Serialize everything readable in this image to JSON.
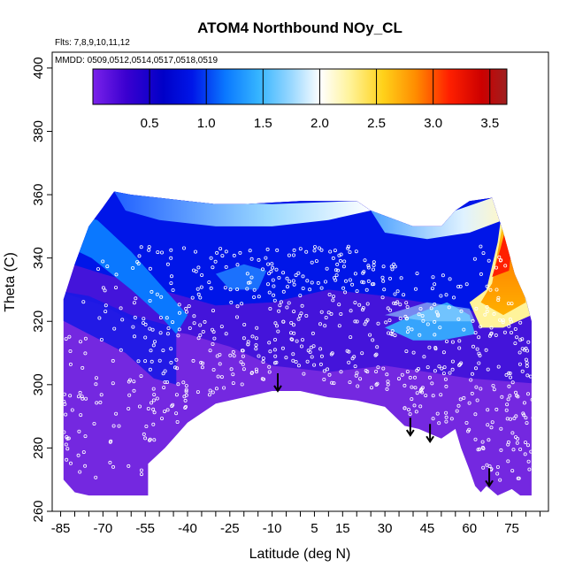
{
  "chart_data": {
    "type": "heatmap",
    "title": "ATOM4 Northbound NOy_CL",
    "subtitle": "Flts: 7,8,9,10,11,12",
    "annotation": "MMDD: 0509,0512,0514,0517,0518,0519",
    "xlabel": "Latitude (deg N)",
    "ylabel": "Theta (C)",
    "xlim": [
      -88,
      88
    ],
    "ylim": [
      260,
      405
    ],
    "x_ticks": [
      -85,
      -70,
      -55,
      -40,
      -25,
      -10,
      5,
      15,
      30,
      45,
      60,
      75
    ],
    "y_ticks": [
      260,
      280,
      300,
      320,
      340,
      360,
      380,
      400
    ],
    "colorbar": {
      "range": [
        0,
        3.65
      ],
      "ticks": [
        0.5,
        1.0,
        1.5,
        2.0,
        2.5,
        3.0,
        3.5
      ],
      "tick_labels": [
        "0.5",
        "1.0",
        "1.5",
        "2.0",
        "2.5",
        "3.0",
        "3.5"
      ],
      "colors": [
        "#7a22ea",
        "#3b00d0",
        "#0000c8",
        "#0016e8",
        "#0a78ff",
        "#35b4ff",
        "#9ad8ff",
        "#ffffff",
        "#fff39a",
        "#ffd21a",
        "#ff8c00",
        "#ff2000",
        "#cc0000",
        "#9e2020"
      ]
    },
    "arrows": [
      {
        "lat": -8,
        "theta": 298
      },
      {
        "lat": 39,
        "theta": 284
      },
      {
        "lat": 46,
        "theta": 282
      },
      {
        "lat": 67,
        "theta": 268
      }
    ],
    "upper_envelope": [
      [
        -84,
        327
      ],
      [
        -80,
        338
      ],
      [
        -75,
        350
      ],
      [
        -70,
        356
      ],
      [
        -66,
        361
      ],
      [
        -60,
        360
      ],
      [
        -50,
        359
      ],
      [
        -40,
        358
      ],
      [
        -30,
        357
      ],
      [
        -20,
        357
      ],
      [
        0,
        358
      ],
      [
        20,
        358
      ],
      [
        25,
        355
      ],
      [
        40,
        350
      ],
      [
        50,
        350
      ],
      [
        55,
        355
      ],
      [
        60,
        358
      ],
      [
        68,
        359
      ],
      [
        72,
        348
      ],
      [
        76,
        335
      ],
      [
        80,
        327
      ],
      [
        82,
        320
      ],
      [
        82,
        300
      ]
    ],
    "lower_envelope": [
      [
        -84,
        270
      ],
      [
        -80,
        266
      ],
      [
        -75,
        265
      ],
      [
        -70,
        265
      ],
      [
        -60,
        265
      ],
      [
        -54,
        265
      ],
      [
        -54,
        275
      ],
      [
        -48,
        280
      ],
      [
        -40,
        288
      ],
      [
        -30,
        294
      ],
      [
        -20,
        296
      ],
      [
        -10,
        298
      ],
      [
        0,
        298
      ],
      [
        10,
        296
      ],
      [
        20,
        295
      ],
      [
        30,
        293
      ],
      [
        37,
        287
      ],
      [
        42,
        286
      ],
      [
        50,
        283
      ],
      [
        55,
        286
      ],
      [
        57,
        280
      ],
      [
        60,
        273
      ],
      [
        62,
        268
      ],
      [
        64,
        266
      ],
      [
        66,
        268
      ],
      [
        70,
        265
      ],
      [
        75,
        267
      ],
      [
        78,
        265
      ],
      [
        82,
        265
      ]
    ],
    "regions": [
      {
        "name": "background",
        "value": 0.3
      },
      {
        "name": "upper-layer",
        "value": 0.9
      },
      {
        "name": "sw-tongue",
        "value": 1.2
      },
      {
        "name": "top-streak-a",
        "value": 1.6
      },
      {
        "name": "top-streak-b",
        "value": 1.9
      },
      {
        "name": "high-lat-shoulder",
        "value": 1.4
      },
      {
        "name": "arctic-top",
        "value": 2.2
      },
      {
        "name": "arctic-core",
        "value": 2.8
      },
      {
        "name": "arctic-max",
        "value": 3.1
      }
    ]
  }
}
